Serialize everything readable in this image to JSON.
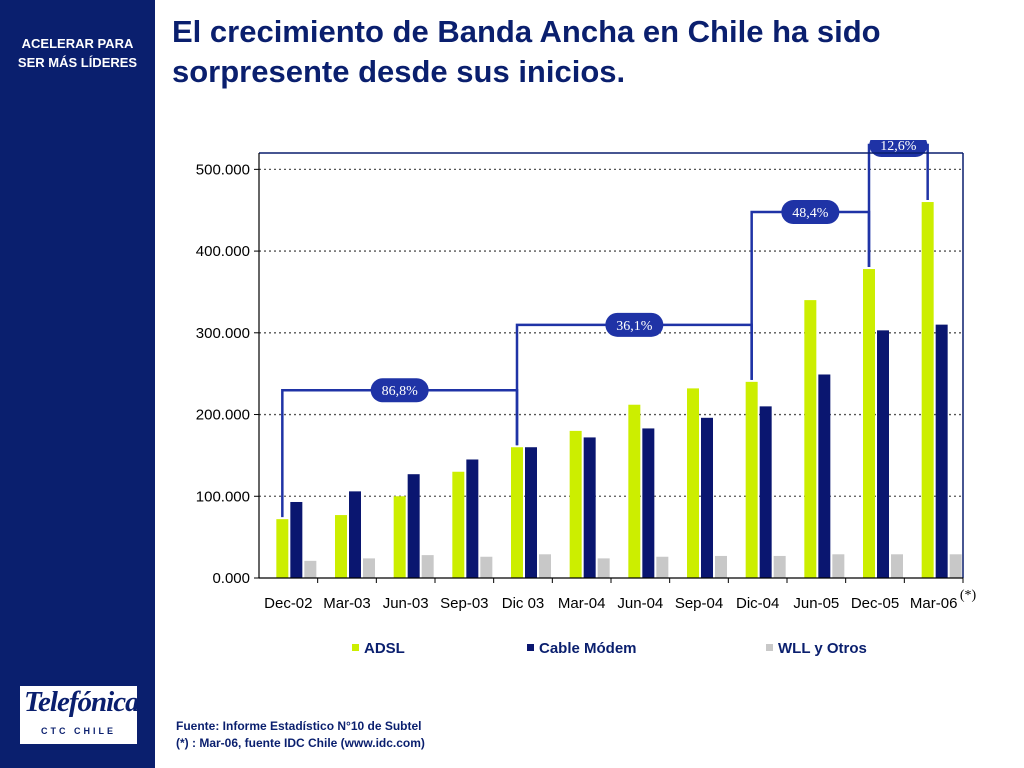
{
  "sidebar": {
    "tagline_line1": "ACELERAR PARA",
    "tagline_line2": "SER MÁS LÍDERES",
    "logo_text": "Telefónica",
    "logo_sub": "CTC CHILE"
  },
  "title_line1": "El crecimiento de Banda Ancha en Chile ha sido",
  "title_line2": "sorpresente desde sus inicios.",
  "footnote": {
    "line1": "Fuente: Informe Estadístico N°10 de Subtel",
    "line2": "(*) : Mar-06, fuente IDC Chile (www.idc.com)"
  },
  "colors": {
    "adsl": "#ccee00",
    "cable": "#0a1670",
    "wll": "#c8c8c8",
    "annotation": "#1f33a6",
    "brand": "#0a1f6e"
  },
  "chart_data": {
    "type": "bar",
    "categories": [
      "Dec-02",
      "Mar-03",
      "Jun-03",
      "Sep-03",
      "Dic 03",
      "Mar-04",
      "Jun-04",
      "Sep-04",
      "Dic-04",
      "Jun-05",
      "Dec-05",
      "Mar-06"
    ],
    "series": [
      {
        "name": "ADSL",
        "values": [
          72000,
          77000,
          100000,
          130000,
          160000,
          180000,
          212000,
          232000,
          240000,
          340000,
          378000,
          460000
        ]
      },
      {
        "name": "Cable Módem",
        "values": [
          93000,
          106000,
          127000,
          145000,
          160000,
          172000,
          183000,
          196000,
          210000,
          249000,
          303000,
          310000
        ]
      },
      {
        "name": "WLL y Otros",
        "values": [
          21000,
          24000,
          28000,
          26000,
          29000,
          24000,
          26000,
          27000,
          27000,
          29000,
          29000,
          29000
        ]
      }
    ],
    "yticks": [
      "0.000",
      "100.000",
      "200.000",
      "300.000",
      "400.000",
      "500.000"
    ],
    "ylim": [
      0,
      520000
    ],
    "grid": true,
    "legend_position": "bottom",
    "category_note": "(*)",
    "annotations": [
      {
        "label": "86,8%",
        "from": 0,
        "to": 4
      },
      {
        "label": "36,1%",
        "from": 4,
        "to": 8
      },
      {
        "label": "48,4%",
        "from": 8,
        "to": 10
      },
      {
        "label": "12,6%",
        "from": 10,
        "to": 11
      }
    ]
  }
}
